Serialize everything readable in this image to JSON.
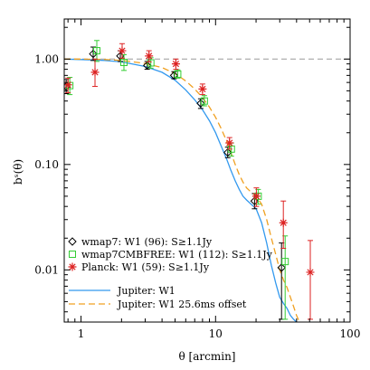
{
  "chart_data": {
    "type": "scatter",
    "xlabel": "θ [arcmin]",
    "ylabel": "bˢ(θ)",
    "xscale": "log",
    "yscale": "log",
    "xlim": [
      0.75,
      100
    ],
    "ylim": [
      0.0032,
      2.4
    ],
    "x_ticks": [
      1,
      10,
      100
    ],
    "x_tick_labels": [
      "1",
      "10",
      "100"
    ],
    "y_ticks": [
      0.01,
      0.1,
      1.0
    ],
    "y_tick_labels": [
      "0.01",
      "0.10",
      "1.00"
    ],
    "reference_line": {
      "y": 1.0,
      "style": "dashed",
      "color": "#999999"
    },
    "series": [
      {
        "name": "wmap7: W1 (96): S≥1.1Jy",
        "marker": "diamond",
        "color": "#000000",
        "points": [
          {
            "x": 0.8,
            "y": 0.55,
            "lo": 0.47,
            "hi": 0.64
          },
          {
            "x": 1.27,
            "y": 1.12,
            "lo": 0.97,
            "hi": 1.3
          },
          {
            "x": 2.02,
            "y": 1.07,
            "lo": 0.95,
            "hi": 1.2
          },
          {
            "x": 3.2,
            "y": 0.87,
            "lo": 0.8,
            "hi": 0.95
          },
          {
            "x": 5.07,
            "y": 0.7,
            "lo": 0.65,
            "hi": 0.76
          },
          {
            "x": 8.0,
            "y": 0.38,
            "lo": 0.34,
            "hi": 0.42
          },
          {
            "x": 12.7,
            "y": 0.13,
            "lo": 0.116,
            "hi": 0.146
          },
          {
            "x": 20.1,
            "y": 0.045,
            "lo": 0.038,
            "hi": 0.053
          },
          {
            "x": 31.9,
            "y": 0.0105,
            "lo": 0.0034,
            "hi": 0.018
          }
        ]
      },
      {
        "name": "wmap7CMBFREE: W1 (112): S≥1.1Jy",
        "marker": "square",
        "color": "#33cc33",
        "points": [
          {
            "x": 0.8,
            "y": 0.56,
            "lo": 0.46,
            "hi": 0.67
          },
          {
            "x": 1.27,
            "y": 1.2,
            "lo": 0.95,
            "hi": 1.5
          },
          {
            "x": 2.02,
            "y": 0.93,
            "lo": 0.78,
            "hi": 1.1
          },
          {
            "x": 3.2,
            "y": 0.92,
            "lo": 0.82,
            "hi": 1.03
          },
          {
            "x": 5.07,
            "y": 0.72,
            "lo": 0.66,
            "hi": 0.79
          },
          {
            "x": 8.0,
            "y": 0.4,
            "lo": 0.36,
            "hi": 0.45
          },
          {
            "x": 12.7,
            "y": 0.14,
            "lo": 0.12,
            "hi": 0.16
          },
          {
            "x": 20.1,
            "y": 0.05,
            "lo": 0.042,
            "hi": 0.058
          },
          {
            "x": 31.9,
            "y": 0.012,
            "lo": 0.0034,
            "hi": 0.021
          }
        ]
      },
      {
        "name": "Planck: W1 (59): S≥1.1Jy",
        "marker": "star",
        "color": "#dd2222",
        "points": [
          {
            "x": 0.8,
            "y": 0.57,
            "lo": 0.48,
            "hi": 0.66
          },
          {
            "x": 1.27,
            "y": 0.75,
            "lo": 0.55,
            "hi": 1.0
          },
          {
            "x": 2.02,
            "y": 1.2,
            "lo": 1.02,
            "hi": 1.4
          },
          {
            "x": 3.2,
            "y": 1.07,
            "lo": 0.94,
            "hi": 1.2
          },
          {
            "x": 5.07,
            "y": 0.9,
            "lo": 0.8,
            "hi": 1.0
          },
          {
            "x": 8.0,
            "y": 0.52,
            "lo": 0.46,
            "hi": 0.58
          },
          {
            "x": 12.7,
            "y": 0.16,
            "lo": 0.14,
            "hi": 0.18
          },
          {
            "x": 20.1,
            "y": 0.05,
            "lo": 0.04,
            "hi": 0.06
          },
          {
            "x": 31.9,
            "y": 0.028,
            "lo": 0.016,
            "hi": 0.045
          },
          {
            "x": 50.6,
            "y": 0.0095,
            "lo": 0.0034,
            "hi": 0.019
          }
        ]
      }
    ],
    "curves": [
      {
        "name": "Jupiter: W1",
        "style": "solid",
        "color": "#3399ee",
        "x": [
          0.75,
          1.0,
          1.5,
          2.0,
          3.0,
          4.0,
          5.0,
          6.0,
          7.0,
          8.0,
          9.0,
          10.0,
          11.0,
          12.0,
          13.0,
          14.0,
          15.0,
          16.0,
          17.0,
          18.0,
          20.0,
          22.0,
          24.0,
          26.0,
          28.0,
          30.0,
          32.0,
          34.0,
          36.0,
          38.0,
          40.0
        ],
        "y": [
          1.0,
          0.99,
          0.97,
          0.94,
          0.85,
          0.75,
          0.63,
          0.51,
          0.41,
          0.33,
          0.26,
          0.2,
          0.15,
          0.115,
          0.088,
          0.07,
          0.058,
          0.05,
          0.046,
          0.043,
          0.038,
          0.028,
          0.018,
          0.011,
          0.0075,
          0.0055,
          0.0048,
          0.0043,
          0.0037,
          0.0034,
          0.0032
        ]
      },
      {
        "name": "Jupiter: W1 25.6ms offset",
        "style": "dashed",
        "color": "#f0a020",
        "x": [
          0.75,
          1.0,
          1.5,
          2.0,
          3.0,
          4.0,
          5.0,
          6.0,
          7.0,
          8.0,
          9.0,
          10.0,
          11.0,
          12.0,
          13.0,
          14.0,
          15.0,
          16.0,
          17.0,
          18.0,
          20.0,
          22.0,
          24.0,
          26.0,
          28.0,
          30.0,
          32.0,
          34.0,
          36.0,
          38.0,
          40.0,
          42.0
        ],
        "y": [
          1.0,
          1.0,
          0.99,
          0.97,
          0.91,
          0.83,
          0.73,
          0.62,
          0.52,
          0.43,
          0.35,
          0.28,
          0.22,
          0.17,
          0.13,
          0.1,
          0.08,
          0.068,
          0.06,
          0.056,
          0.05,
          0.042,
          0.03,
          0.02,
          0.014,
          0.01,
          0.008,
          0.0068,
          0.0055,
          0.0045,
          0.0037,
          0.0032
        ]
      }
    ],
    "legend": {
      "placement": "bottom-left"
    }
  }
}
